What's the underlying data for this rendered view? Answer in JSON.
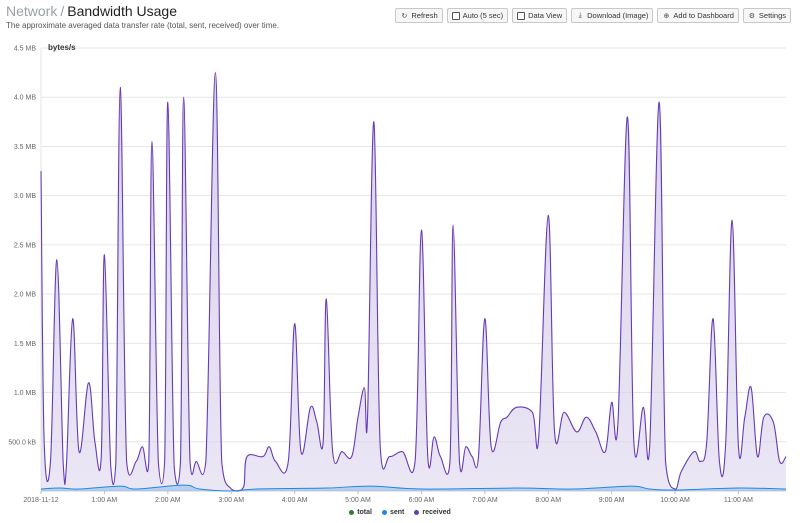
{
  "header": {
    "breadcrumb": "Network",
    "separator": "/",
    "title": "Bandwidth Usage",
    "subtitle": "The approximate averaged data transfer rate (total, sent, received) over time."
  },
  "toolbar": {
    "refresh_label": "Refresh",
    "auto_label": "Auto (5 sec)",
    "data_view_label": "Data View",
    "download_label": "Download (Image)",
    "add_dashboard_label": "Add to Dashboard",
    "settings_label": "Settings"
  },
  "chart_data": {
    "type": "area",
    "y_unit_label": "bytes/s",
    "ylim": [
      0,
      4.5
    ],
    "y_ticks": [
      {
        "v": 0.5,
        "label": "500.0 kB"
      },
      {
        "v": 1.0,
        "label": "1.0 MB"
      },
      {
        "v": 1.5,
        "label": "1.5 MB"
      },
      {
        "v": 2.0,
        "label": "2.0 MB"
      },
      {
        "v": 2.5,
        "label": "2.5 MB"
      },
      {
        "v": 3.0,
        "label": "3.0 MB"
      },
      {
        "v": 3.5,
        "label": "3.5 MB"
      },
      {
        "v": 4.0,
        "label": "4.0 MB"
      },
      {
        "v": 4.5,
        "label": "4.5 MB"
      }
    ],
    "xlim_hours": [
      0,
      11.75
    ],
    "x_ticks": [
      {
        "t": 0,
        "label": "2018-11-12"
      },
      {
        "t": 1,
        "label": "1:00 AM"
      },
      {
        "t": 2,
        "label": "2:00 AM"
      },
      {
        "t": 3,
        "label": "3:00 AM"
      },
      {
        "t": 4,
        "label": "4:00 AM"
      },
      {
        "t": 5,
        "label": "5:00 AM"
      },
      {
        "t": 6,
        "label": "6:00 AM"
      },
      {
        "t": 7,
        "label": "7:00 AM"
      },
      {
        "t": 8,
        "label": "8:00 AM"
      },
      {
        "t": 9,
        "label": "9:00 AM"
      },
      {
        "t": 10,
        "label": "10:00 AM"
      },
      {
        "t": 11,
        "label": "11:00 AM"
      }
    ],
    "series": [
      {
        "name": "total",
        "color": "#2e7d32",
        "values": []
      },
      {
        "name": "sent",
        "color": "#1e88e5",
        "values": [
          [
            0,
            0.02
          ],
          [
            0.3,
            0.03
          ],
          [
            0.6,
            0.02
          ],
          [
            1.25,
            0.05
          ],
          [
            1.5,
            0.02
          ],
          [
            2.25,
            0.06
          ],
          [
            2.5,
            0.02
          ],
          [
            3.0,
            0.0
          ],
          [
            3.4,
            0.02
          ],
          [
            4.5,
            0.03
          ],
          [
            5.2,
            0.05
          ],
          [
            6.0,
            0.02
          ],
          [
            7.5,
            0.03
          ],
          [
            8.4,
            0.02
          ],
          [
            9.3,
            0.05
          ],
          [
            9.6,
            0.02
          ],
          [
            10.0,
            0.01
          ],
          [
            11.0,
            0.03
          ],
          [
            11.75,
            0.02
          ]
        ]
      },
      {
        "name": "received",
        "color": "#673ab7",
        "values": [
          [
            0,
            3.25
          ],
          [
            0.05,
            0.5
          ],
          [
            0.15,
            0.3
          ],
          [
            0.25,
            2.35
          ],
          [
            0.35,
            0.28
          ],
          [
            0.4,
            0.25
          ],
          [
            0.5,
            1.75
          ],
          [
            0.6,
            0.4
          ],
          [
            0.75,
            1.1
          ],
          [
            0.85,
            0.5
          ],
          [
            0.95,
            0.35
          ],
          [
            1.0,
            2.4
          ],
          [
            1.1,
            0.25
          ],
          [
            1.18,
            0.28
          ],
          [
            1.25,
            4.1
          ],
          [
            1.35,
            0.3
          ],
          [
            1.5,
            0.3
          ],
          [
            1.6,
            0.45
          ],
          [
            1.7,
            0.3
          ],
          [
            1.75,
            3.55
          ],
          [
            1.85,
            0.3
          ],
          [
            1.95,
            0.3
          ],
          [
            2.0,
            3.95
          ],
          [
            2.1,
            0.25
          ],
          [
            2.2,
            0.3
          ],
          [
            2.25,
            4.0
          ],
          [
            2.35,
            0.3
          ],
          [
            2.45,
            0.3
          ],
          [
            2.6,
            0.3
          ],
          [
            2.75,
            4.25
          ],
          [
            2.85,
            0.3
          ],
          [
            3.0,
            0.02
          ],
          [
            3.1,
            0.0
          ],
          [
            3.2,
            0.05
          ],
          [
            3.25,
            0.35
          ],
          [
            3.5,
            0.35
          ],
          [
            3.6,
            0.45
          ],
          [
            3.7,
            0.3
          ],
          [
            3.9,
            0.3
          ],
          [
            4.0,
            1.7
          ],
          [
            4.1,
            0.4
          ],
          [
            4.25,
            0.85
          ],
          [
            4.35,
            0.7
          ],
          [
            4.45,
            0.5
          ],
          [
            4.5,
            1.95
          ],
          [
            4.6,
            0.4
          ],
          [
            4.75,
            0.4
          ],
          [
            4.9,
            0.35
          ],
          [
            5.0,
            0.75
          ],
          [
            5.1,
            1.05
          ],
          [
            5.15,
            0.75
          ],
          [
            5.25,
            3.75
          ],
          [
            5.35,
            0.45
          ],
          [
            5.5,
            0.35
          ],
          [
            5.7,
            0.4
          ],
          [
            5.9,
            0.3
          ],
          [
            6.0,
            2.65
          ],
          [
            6.1,
            0.35
          ],
          [
            6.2,
            0.55
          ],
          [
            6.3,
            0.35
          ],
          [
            6.45,
            0.3
          ],
          [
            6.5,
            2.7
          ],
          [
            6.6,
            0.3
          ],
          [
            6.7,
            0.45
          ],
          [
            6.8,
            0.35
          ],
          [
            6.9,
            0.35
          ],
          [
            7.0,
            1.75
          ],
          [
            7.1,
            0.45
          ],
          [
            7.25,
            0.7
          ],
          [
            7.35,
            0.75
          ],
          [
            7.5,
            0.85
          ],
          [
            7.75,
            0.8
          ],
          [
            7.85,
            0.55
          ],
          [
            8.0,
            2.8
          ],
          [
            8.1,
            0.6
          ],
          [
            8.25,
            0.8
          ],
          [
            8.45,
            0.6
          ],
          [
            8.6,
            0.75
          ],
          [
            8.75,
            0.6
          ],
          [
            8.9,
            0.4
          ],
          [
            9.0,
            0.9
          ],
          [
            9.1,
            0.7
          ],
          [
            9.25,
            3.8
          ],
          [
            9.35,
            0.5
          ],
          [
            9.5,
            0.85
          ],
          [
            9.6,
            0.45
          ],
          [
            9.75,
            3.95
          ],
          [
            9.85,
            0.3
          ],
          [
            10.0,
            0.02
          ],
          [
            10.1,
            0.2
          ],
          [
            10.3,
            0.4
          ],
          [
            10.4,
            0.3
          ],
          [
            10.5,
            0.5
          ],
          [
            10.6,
            1.75
          ],
          [
            10.7,
            0.3
          ],
          [
            10.8,
            0.5
          ],
          [
            10.9,
            2.75
          ],
          [
            11.0,
            0.45
          ],
          [
            11.1,
            0.75
          ],
          [
            11.2,
            1.05
          ],
          [
            11.3,
            0.35
          ],
          [
            11.4,
            0.75
          ],
          [
            11.55,
            0.7
          ],
          [
            11.65,
            0.3
          ],
          [
            11.75,
            0.35
          ]
        ]
      }
    ],
    "legend": [
      "total",
      "sent",
      "received"
    ],
    "legend_position": "bottom",
    "grid": true,
    "fill_color": "#d9d2ec"
  }
}
